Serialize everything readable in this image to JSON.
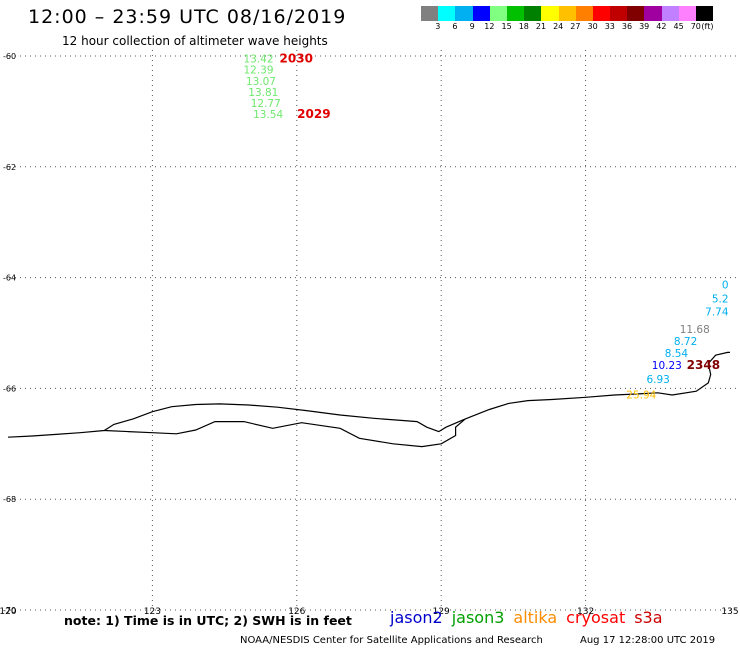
{
  "header": {
    "title": "12:00 – 23:59 UTC 08/16/2019",
    "subtitle": "12 hour collection of altimeter wave heights"
  },
  "colorbar": {
    "colors": [
      "#808080",
      "#00ffff",
      "#00b0f0",
      "#0000ff",
      "#80ff80",
      "#00c000",
      "#008000",
      "#ffff00",
      "#ffc000",
      "#ff8000",
      "#ff0000",
      "#c00000",
      "#800000",
      "#a000a0",
      "#c080ff",
      "#ff80ff",
      "#000000"
    ],
    "labels": [
      "3",
      "6",
      "9",
      "12",
      "15",
      "18",
      "21",
      "24",
      "27",
      "30",
      "33",
      "36",
      "39",
      "42",
      "45",
      "70"
    ],
    "unit": "(ft)"
  },
  "map": {
    "lon_range": [
      120,
      135
    ],
    "lat_range": [
      -70,
      -60
    ],
    "lon_ticks": [
      "120",
      "123",
      "126",
      "129",
      "132",
      "135"
    ],
    "lat_ticks": [
      "-60",
      "-62",
      "-64",
      "-66",
      "-68",
      "-70"
    ],
    "grid": true,
    "coastline": [
      [
        120.0,
        -66.88
      ],
      [
        120.5,
        -66.86
      ],
      [
        121.0,
        -66.83
      ],
      [
        121.5,
        -66.8
      ],
      [
        122.0,
        -66.76
      ],
      [
        122.2,
        -66.65
      ],
      [
        122.6,
        -66.55
      ],
      [
        123.0,
        -66.42
      ],
      [
        123.4,
        -66.33
      ],
      [
        123.9,
        -66.29
      ],
      [
        124.4,
        -66.28
      ],
      [
        125.0,
        -66.3
      ],
      [
        125.6,
        -66.34
      ],
      [
        126.2,
        -66.4
      ],
      [
        126.9,
        -66.48
      ],
      [
        127.6,
        -66.54
      ],
      [
        128.2,
        -66.58
      ],
      [
        128.5,
        -66.6
      ],
      [
        128.7,
        -66.7
      ],
      [
        128.95,
        -66.78
      ],
      [
        129.1,
        -66.7
      ],
      [
        129.5,
        -66.55
      ],
      [
        130.0,
        -66.38
      ],
      [
        130.4,
        -66.27
      ],
      [
        130.8,
        -66.22
      ],
      [
        131.3,
        -66.2
      ],
      [
        132.0,
        -66.16
      ],
      [
        132.6,
        -66.12
      ],
      [
        133.1,
        -66.1
      ],
      [
        133.5,
        -66.08
      ],
      [
        133.8,
        -66.12
      ],
      [
        134.3,
        -66.05
      ],
      [
        134.55,
        -65.9
      ],
      [
        134.6,
        -65.75
      ],
      [
        134.55,
        -65.55
      ],
      [
        134.7,
        -65.4
      ],
      [
        134.95,
        -65.35
      ],
      [
        135.0,
        -65.35
      ]
    ],
    "coastline2": [
      [
        122.0,
        -66.76
      ],
      [
        122.5,
        -66.78
      ],
      [
        123.0,
        -66.8
      ],
      [
        123.5,
        -66.82
      ],
      [
        123.9,
        -66.75
      ],
      [
        124.3,
        -66.6
      ],
      [
        124.9,
        -66.6
      ],
      [
        125.5,
        -66.72
      ],
      [
        126.1,
        -66.62
      ],
      [
        126.9,
        -66.72
      ],
      [
        127.3,
        -66.9
      ],
      [
        128.0,
        -67.0
      ],
      [
        128.6,
        -67.05
      ],
      [
        129.0,
        -67.0
      ],
      [
        129.3,
        -66.85
      ],
      [
        129.3,
        -66.7
      ],
      [
        129.5,
        -66.55
      ]
    ],
    "tracks": [
      {
        "time_end": "2030",
        "time_start": "2029",
        "color": "#6ee86e",
        "points": [
          {
            "lon": 125.6,
            "lat": -60.12,
            "value": "13.42"
          },
          {
            "lon": 125.6,
            "lat": -60.32,
            "value": "12.39"
          },
          {
            "lon": 125.65,
            "lat": -60.52,
            "value": "13.07"
          },
          {
            "lon": 125.7,
            "lat": -60.72,
            "value": "13.81"
          },
          {
            "lon": 125.75,
            "lat": -60.92,
            "value": "12.77"
          },
          {
            "lon": 125.8,
            "lat": -61.12,
            "value": "13.54"
          }
        ]
      },
      {
        "time_label": "2348",
        "time_color": "#800000",
        "points": [
          {
            "lon": 134.97,
            "lat": -64.2,
            "value": "0",
            "color": "#00b0f0"
          },
          {
            "lon": 134.97,
            "lat": -64.45,
            "value": "5.2",
            "color": "#00b0f0"
          },
          {
            "lon": 134.97,
            "lat": -64.68,
            "value": "7.74",
            "color": "#00b0f0"
          },
          {
            "lon": 134.58,
            "lat": -65.0,
            "value": "11.68",
            "color": "#808080"
          },
          {
            "lon": 134.32,
            "lat": -65.22,
            "value": "8.72",
            "color": "#00b0f0"
          },
          {
            "lon": 134.13,
            "lat": -65.43,
            "value": "8.54",
            "color": "#00b0f0"
          },
          {
            "lon": 134.0,
            "lat": -65.65,
            "value": "10.23",
            "color": "#0000ff"
          },
          {
            "lon": 133.75,
            "lat": -65.9,
            "value": "6.93",
            "color": "#00b0f0"
          },
          {
            "lon": 133.47,
            "lat": -66.18,
            "value": "25.94",
            "color": "#ffc000"
          }
        ]
      }
    ]
  },
  "footer": {
    "note": "note: 1) Time is in UTC; 2) SWH is in feet",
    "legend": [
      {
        "name": "jason2",
        "color": "#0000cc"
      },
      {
        "name": "jason3",
        "color": "#00a000"
      },
      {
        "name": "altika",
        "color": "#ff8c00"
      },
      {
        "name": "cryosat",
        "color": "#ff0000"
      },
      {
        "name": "s3a",
        "color": "#cc0000"
      }
    ],
    "credit": "NOAA/NESDIS Center for Satellite Applications and Research",
    "timestamp": "Aug 17 12:28:00 UTC 2019"
  }
}
